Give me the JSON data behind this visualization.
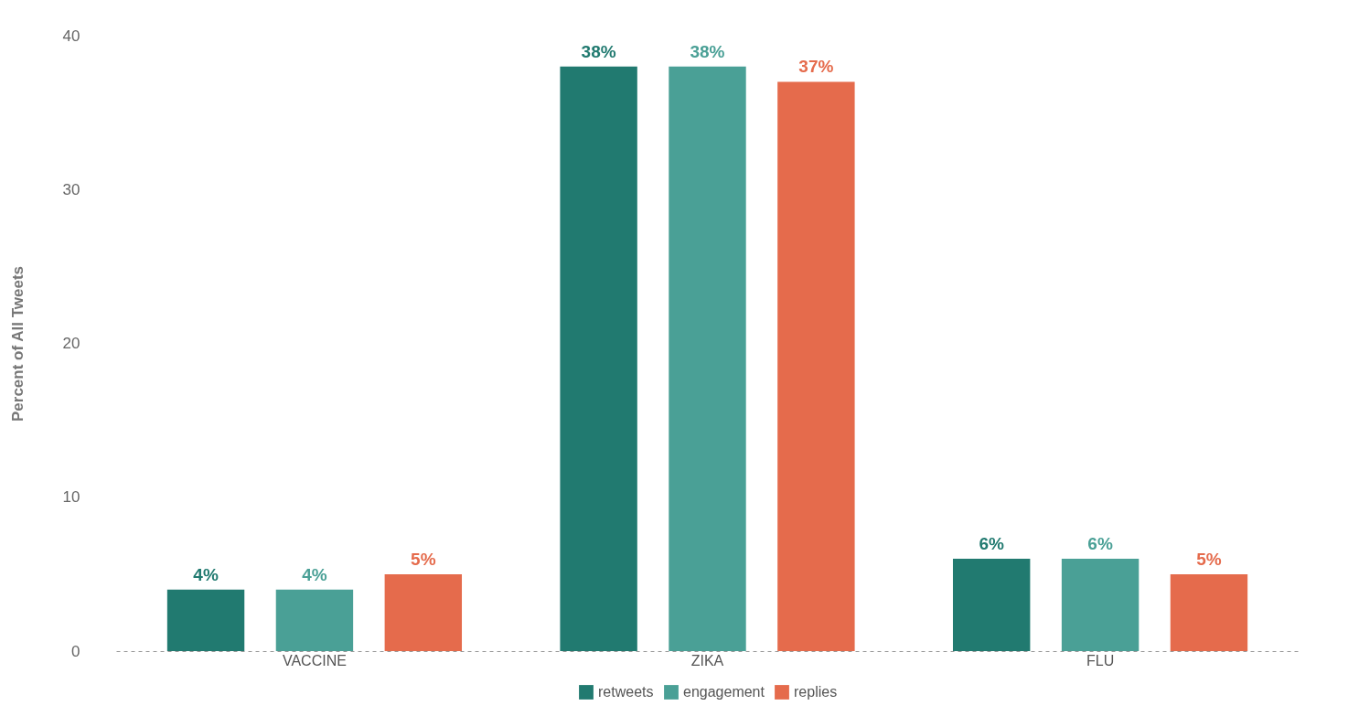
{
  "chart_data": {
    "type": "bar",
    "ylabel": "Percent of All Tweets",
    "categories": [
      "VACCINE",
      "ZIKA",
      "FLU"
    ],
    "series": [
      {
        "name": "retweets",
        "color": "#217a70",
        "values": [
          4,
          38,
          6
        ],
        "value_labels": [
          "4%",
          "38%",
          "6%"
        ]
      },
      {
        "name": "engagement",
        "color": "#4aa096",
        "values": [
          4,
          38,
          6
        ],
        "value_labels": [
          "4%",
          "38%",
          "6%"
        ]
      },
      {
        "name": "replies",
        "color": "#e56b4c",
        "values": [
          5,
          37,
          5
        ],
        "value_labels": [
          "5%",
          "37%",
          "5%"
        ]
      }
    ],
    "ylim": [
      0,
      40
    ],
    "yticks": [
      0,
      10,
      20,
      30,
      40
    ],
    "legend": "bottom"
  }
}
